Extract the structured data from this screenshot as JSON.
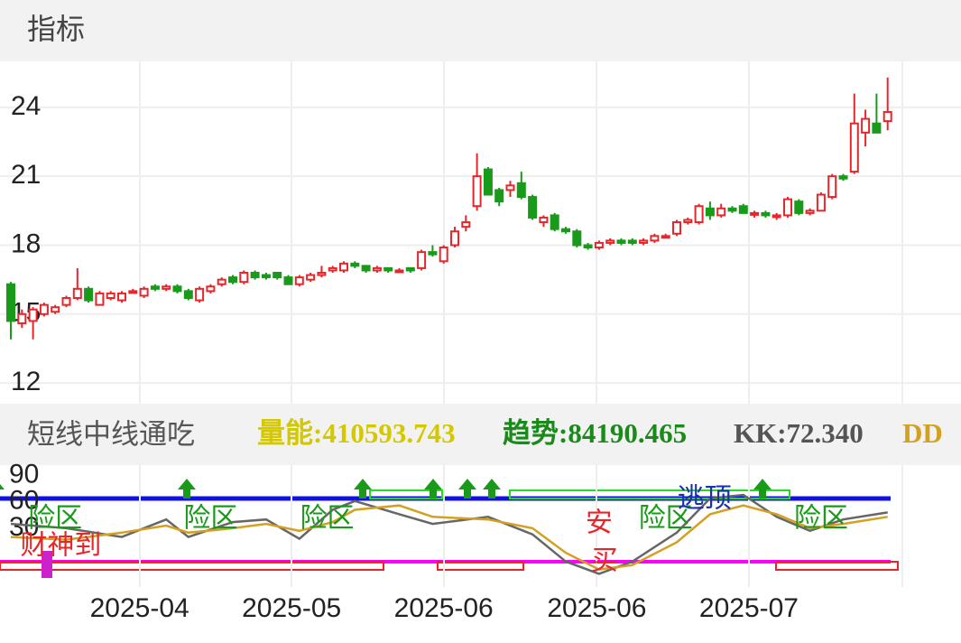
{
  "header": {
    "title": "指标"
  },
  "chart_data": [
    {
      "type": "candlestick",
      "up_color": "#e8262a",
      "down_color": "#1a9a1a",
      "open": [
        16.3,
        14.6,
        14.7,
        15.0,
        15.1,
        15.4,
        15.7,
        16.1,
        15.4,
        15.7,
        15.6,
        16.0,
        15.8,
        16.2,
        16.1,
        16.2,
        16.0,
        15.6,
        16.0,
        16.3,
        16.6,
        16.4,
        16.8,
        16.7,
        16.8,
        16.6,
        16.3,
        16.5,
        16.7,
        16.9,
        16.9,
        17.2,
        17.1,
        16.9,
        17.0,
        16.9,
        17.0,
        17.0,
        17.7,
        17.3,
        18.0,
        18.8,
        19.7,
        21.3,
        20.4,
        20.4,
        20.7,
        20.1,
        19.0,
        19.3,
        18.7,
        18.6,
        18.0,
        17.9,
        18.1,
        18.2,
        18.2,
        18.1,
        18.2,
        18.4,
        18.5,
        19.0,
        19.0,
        19.6,
        19.3,
        19.6,
        19.7,
        19.4,
        19.4,
        19.3,
        19.3,
        19.9,
        19.4,
        19.5,
        20.1,
        21.0,
        21.2,
        22.9,
        23.3,
        23.4
      ],
      "high": [
        16.4,
        15.2,
        15.3,
        15.5,
        15.4,
        15.8,
        17.0,
        16.2,
        16.0,
        16.0,
        16.0,
        16.1,
        16.2,
        16.3,
        16.3,
        16.3,
        16.1,
        16.2,
        16.3,
        16.6,
        16.7,
        16.9,
        16.9,
        16.8,
        16.8,
        16.7,
        16.7,
        16.8,
        17.1,
        17.1,
        17.3,
        17.3,
        17.1,
        17.1,
        17.0,
        17.0,
        17.0,
        17.8,
        18.0,
        18.0,
        18.8,
        19.3,
        22.0,
        21.4,
        20.5,
        20.8,
        21.2,
        20.2,
        19.3,
        19.4,
        18.8,
        18.7,
        18.1,
        18.2,
        18.3,
        18.3,
        18.3,
        18.3,
        18.5,
        18.5,
        19.1,
        19.2,
        19.8,
        19.9,
        19.8,
        19.7,
        19.8,
        19.5,
        19.5,
        19.4,
        20.1,
        20.0,
        19.6,
        20.3,
        21.1,
        21.1,
        24.6,
        23.9,
        24.6,
        25.3
      ],
      "low": [
        13.9,
        14.4,
        13.9,
        14.9,
        15.0,
        15.3,
        15.6,
        15.5,
        15.4,
        15.6,
        15.5,
        15.9,
        15.7,
        16.0,
        16.0,
        15.9,
        15.6,
        15.5,
        15.9,
        16.2,
        16.3,
        16.3,
        16.5,
        16.5,
        16.5,
        16.3,
        16.2,
        16.4,
        16.6,
        16.8,
        16.8,
        17.0,
        16.8,
        16.8,
        16.8,
        16.8,
        16.8,
        16.9,
        17.5,
        17.2,
        17.9,
        18.6,
        19.5,
        20.2,
        19.7,
        20.1,
        20.0,
        19.1,
        18.8,
        18.6,
        18.5,
        17.9,
        17.8,
        17.8,
        18.0,
        18.0,
        18.0,
        18.0,
        18.1,
        18.3,
        18.4,
        18.9,
        18.9,
        19.1,
        19.2,
        19.4,
        19.4,
        19.2,
        19.2,
        19.1,
        19.2,
        19.3,
        19.3,
        19.5,
        20.0,
        20.8,
        21.1,
        22.3,
        22.9,
        23.0
      ],
      "close": [
        14.7,
        15.0,
        15.2,
        15.4,
        15.3,
        15.7,
        16.1,
        15.6,
        15.9,
        15.9,
        15.9,
        16.0,
        16.1,
        16.1,
        16.2,
        16.0,
        15.7,
        16.1,
        16.2,
        16.5,
        16.4,
        16.8,
        16.6,
        16.6,
        16.6,
        16.3,
        16.6,
        16.7,
        16.8,
        17.0,
        17.2,
        17.1,
        16.9,
        17.0,
        16.9,
        16.9,
        16.9,
        17.7,
        17.6,
        17.9,
        18.6,
        19.0,
        21.0,
        20.2,
        19.9,
        20.6,
        20.1,
        19.2,
        19.2,
        18.7,
        18.6,
        18.0,
        17.9,
        18.1,
        18.2,
        18.1,
        18.1,
        18.2,
        18.4,
        18.4,
        19.0,
        19.1,
        19.7,
        19.3,
        19.6,
        19.5,
        19.4,
        19.4,
        19.3,
        19.3,
        20.0,
        19.4,
        19.5,
        20.2,
        21.0,
        20.9,
        23.3,
        23.5,
        22.9,
        23.8
      ],
      "ylim": [
        11.1,
        26
      ],
      "yticks": [
        12,
        15,
        18,
        21,
        24
      ],
      "xticks": [
        {
          "value": 11.6,
          "label": "2025-04"
        },
        {
          "value": 25.3,
          "label": "2025-05"
        },
        {
          "value": 39,
          "label": "2025-06"
        },
        {
          "value": 52.8,
          "label": "2025-06"
        },
        {
          "value": 66.5,
          "label": "2025-07"
        }
      ]
    },
    {
      "type": "line",
      "title": "短线中线通吃",
      "legend": [
        {
          "text": "量能:410593.743",
          "color": "#d4c800"
        },
        {
          "text": "趋势:84190.465",
          "color": "#1a8a1a"
        },
        {
          "text": "KK:72.340",
          "color": "#555555"
        },
        {
          "text": "DD",
          "color": "#d4a020"
        }
      ],
      "x": [
        0,
        5,
        10,
        14,
        16,
        20,
        23,
        26,
        29,
        31,
        35,
        38,
        43,
        47,
        50,
        53,
        56,
        60,
        63,
        66,
        69,
        72,
        75,
        79
      ],
      "series": [
        {
          "name": "KK",
          "color": "#666666",
          "values": [
            35,
            30,
            20,
            40,
            20,
            37,
            40,
            18,
            51,
            61,
            46,
            35,
            43,
            23,
            -8,
            -22,
            -8,
            25,
            64,
            68,
            43,
            27,
            40,
            48
          ]
        },
        {
          "name": "DD",
          "color": "#d4a020",
          "values": [
            20,
            17,
            25,
            33,
            25,
            30,
            35,
            27,
            37,
            51,
            56,
            43,
            40,
            30,
            2,
            -17,
            -12,
            14,
            46,
            56,
            46,
            30,
            35,
            43
          ]
        }
      ],
      "ylim": [
        -37,
        102
      ],
      "yticks": [
        30,
        60,
        90
      ],
      "annotations": [
        {
          "text": "险区",
          "x": 4,
          "color": "#1a9a1a"
        },
        {
          "text": "险区",
          "x": 18,
          "color": "#1a9a1a"
        },
        {
          "text": "险区",
          "x": 28.5,
          "color": "#1a9a1a"
        },
        {
          "text": "险区",
          "x": 59,
          "color": "#1a9a1a"
        },
        {
          "text": "险区",
          "x": 73,
          "color": "#1a9a1a"
        },
        {
          "text": "财神到",
          "x": 4.5,
          "color": "#e8262a"
        },
        {
          "text": "安",
          "x": 53,
          "color": "#e8262a"
        },
        {
          "text": "买",
          "x": 53.5,
          "color": "#e8262a"
        },
        {
          "text": "逃顶",
          "x": 62.5,
          "color": "#1a2fb0"
        }
      ]
    }
  ]
}
